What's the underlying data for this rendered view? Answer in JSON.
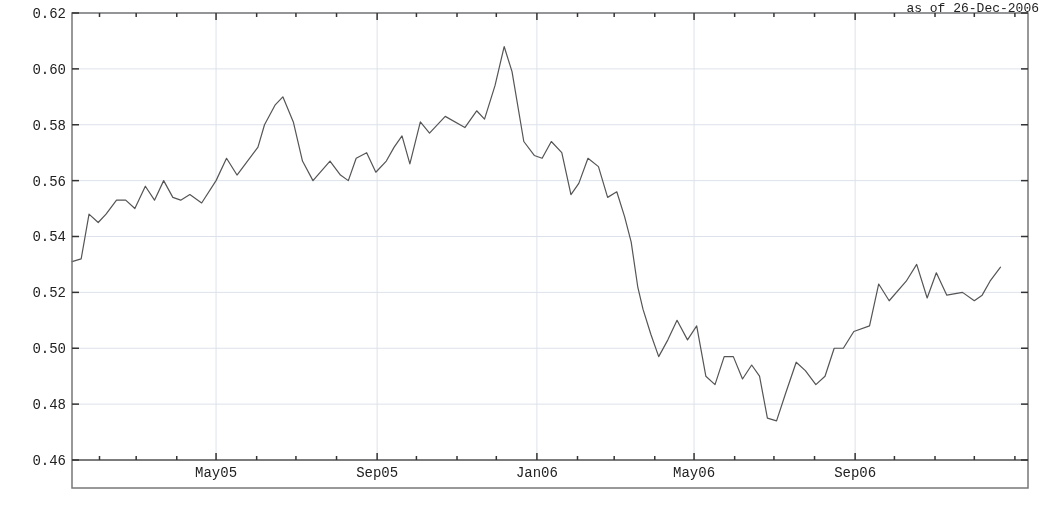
{
  "chart_data": {
    "type": "line",
    "annotations": [
      "as of 26-Dec-2006"
    ],
    "x": [
      "2005-01-11",
      "2005-01-18",
      "2005-01-24",
      "2005-01-31",
      "2005-02-06",
      "2005-02-14",
      "2005-02-21",
      "2005-02-28",
      "2005-03-08",
      "2005-03-15",
      "2005-03-22",
      "2005-03-29",
      "2005-04-04",
      "2005-04-11",
      "2005-04-20",
      "2005-05-01",
      "2005-05-09",
      "2005-05-17",
      "2005-05-25",
      "2005-06-02",
      "2005-06-07",
      "2005-06-15",
      "2005-06-21",
      "2005-06-29",
      "2005-07-06",
      "2005-07-14",
      "2005-07-27",
      "2005-08-04",
      "2005-08-10",
      "2005-08-16",
      "2005-08-24",
      "2005-08-31",
      "2005-09-08",
      "2005-09-14",
      "2005-09-20",
      "2005-09-26",
      "2005-10-04",
      "2005-10-11",
      "2005-10-23",
      "2005-11-07",
      "2005-11-16",
      "2005-11-22",
      "2005-11-30",
      "2005-12-07",
      "2005-12-13",
      "2005-12-22",
      "2005-12-30",
      "2006-01-05",
      "2006-01-12",
      "2006-01-20",
      "2006-01-27",
      "2006-02-02",
      "2006-02-09",
      "2006-02-17",
      "2006-02-24",
      "2006-03-03",
      "2006-03-09",
      "2006-03-14",
      "2006-03-19",
      "2006-03-23",
      "2006-03-29",
      "2006-04-04",
      "2006-04-11",
      "2006-04-18",
      "2006-04-26",
      "2006-05-03",
      "2006-05-10",
      "2006-05-17",
      "2006-05-24",
      "2006-05-31",
      "2006-06-07",
      "2006-06-14",
      "2006-06-20",
      "2006-06-26",
      "2006-07-03",
      "2006-07-10",
      "2006-07-18",
      "2006-07-25",
      "2006-08-02",
      "2006-08-09",
      "2006-08-16",
      "2006-08-23",
      "2006-08-31",
      "2006-09-12",
      "2006-09-19",
      "2006-09-27",
      "2006-10-10",
      "2006-10-18",
      "2006-10-26",
      "2006-11-02",
      "2006-11-10",
      "2006-11-22",
      "2006-12-01",
      "2006-12-07",
      "2006-12-13",
      "2006-12-21"
    ],
    "series": [
      {
        "color": "#555555",
        "values": [
          0.531,
          0.532,
          0.548,
          0.545,
          0.548,
          0.553,
          0.553,
          0.55,
          0.558,
          0.553,
          0.56,
          0.554,
          0.553,
          0.555,
          0.552,
          0.56,
          0.568,
          0.562,
          0.567,
          0.572,
          0.58,
          0.587,
          0.59,
          0.581,
          0.567,
          0.56,
          0.567,
          0.562,
          0.56,
          0.568,
          0.57,
          0.563,
          0.567,
          0.572,
          0.576,
          0.566,
          0.581,
          0.577,
          0.583,
          0.579,
          0.585,
          0.582,
          0.594,
          0.608,
          0.599,
          0.574,
          0.569,
          0.568,
          0.574,
          0.57,
          0.555,
          0.559,
          0.568,
          0.565,
          0.554,
          0.556,
          0.547,
          0.538,
          0.522,
          0.514,
          0.505,
          0.497,
          0.503,
          0.51,
          0.503,
          0.508,
          0.49,
          0.487,
          0.497,
          0.497,
          0.489,
          0.494,
          0.49,
          0.475,
          0.474,
          0.484,
          0.495,
          0.492,
          0.487,
          0.49,
          0.5,
          0.5,
          0.506,
          0.508,
          0.523,
          0.517,
          0.524,
          0.53,
          0.518,
          0.527,
          0.519,
          0.52,
          0.517,
          0.519,
          0.524,
          0.529
        ]
      }
    ],
    "xlim": [
      "2005-01-11",
      "2007-01-11"
    ],
    "xticks": [
      {
        "value": "2005-02-01",
        "label": null
      },
      {
        "value": "2005-03-01",
        "label": null
      },
      {
        "value": "2005-04-01",
        "label": null
      },
      {
        "value": "2005-05-01",
        "label": "May05"
      },
      {
        "value": "2005-06-01",
        "label": null
      },
      {
        "value": "2005-07-01",
        "label": null
      },
      {
        "value": "2005-08-01",
        "label": null
      },
      {
        "value": "2005-09-01",
        "label": "Sep05"
      },
      {
        "value": "2005-10-01",
        "label": null
      },
      {
        "value": "2005-11-01",
        "label": null
      },
      {
        "value": "2005-12-01",
        "label": null
      },
      {
        "value": "2006-01-01",
        "label": "Jan06"
      },
      {
        "value": "2006-02-01",
        "label": null
      },
      {
        "value": "2006-03-01",
        "label": null
      },
      {
        "value": "2006-04-01",
        "label": null
      },
      {
        "value": "2006-05-01",
        "label": "May06"
      },
      {
        "value": "2006-06-01",
        "label": null
      },
      {
        "value": "2006-07-01",
        "label": null
      },
      {
        "value": "2006-08-01",
        "label": null
      },
      {
        "value": "2006-09-01",
        "label": "Sep06"
      },
      {
        "value": "2006-10-01",
        "label": null
      },
      {
        "value": "2006-11-01",
        "label": null
      },
      {
        "value": "2006-12-01",
        "label": null
      },
      {
        "value": "2007-01-01",
        "label": null
      }
    ],
    "ylim": [
      0.46,
      0.62
    ],
    "yticks": [
      {
        "value": 0.46,
        "label": "0.46"
      },
      {
        "value": 0.48,
        "label": "0.48"
      },
      {
        "value": 0.5,
        "label": "0.50"
      },
      {
        "value": 0.52,
        "label": "0.52"
      },
      {
        "value": 0.54,
        "label": "0.54"
      },
      {
        "value": 0.56,
        "label": "0.56"
      },
      {
        "value": 0.58,
        "label": "0.58"
      },
      {
        "value": 0.6,
        "label": "0.60"
      },
      {
        "value": 0.62,
        "label": "0.62"
      }
    ],
    "grid": true,
    "marker": "none",
    "line_style": "solid"
  }
}
